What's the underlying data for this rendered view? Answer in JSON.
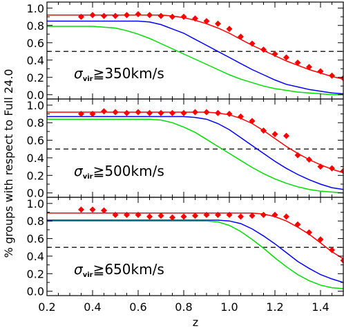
{
  "chart_data": {
    "type": "line",
    "ylabel": "% groups with respect to Full 24.0",
    "xlabel": "z",
    "xlim": [
      0.2,
      1.5
    ],
    "ylim": [
      -0.05,
      1.07
    ],
    "x_ticks": [
      "0.2",
      "0.4",
      "0.6",
      "0.8",
      "1.0",
      "1.2",
      "1.4"
    ],
    "y_ticks": [
      "0.0",
      "0.2",
      "0.4",
      "0.6",
      "0.8",
      "1.0"
    ],
    "reference_line": 0.5,
    "colors": {
      "red": "#ff0000",
      "blue": "#0000ff",
      "green": "#00dd00",
      "points": "#ff0000"
    },
    "panels": [
      {
        "annotation": {
          "symbol": "σ",
          "subscript": "vir",
          "text": "≧350km/s"
        },
        "series": [
          {
            "color": "red",
            "x": [
              0.2,
              0.3,
              0.4,
              0.5,
              0.6,
              0.7,
              0.75,
              0.8,
              0.85,
              0.9,
              0.95,
              1.0,
              1.05,
              1.1,
              1.15,
              1.2,
              1.25,
              1.3,
              1.35,
              1.4,
              1.45,
              1.5
            ],
            "y": [
              0.92,
              0.92,
              0.92,
              0.92,
              0.92,
              0.92,
              0.91,
              0.89,
              0.86,
              0.82,
              0.77,
              0.71,
              0.64,
              0.57,
              0.51,
              0.45,
              0.39,
              0.34,
              0.29,
              0.25,
              0.21,
              0.18
            ]
          },
          {
            "color": "blue",
            "x": [
              0.2,
              0.3,
              0.4,
              0.5,
              0.6,
              0.65,
              0.7,
              0.75,
              0.8,
              0.85,
              0.9,
              0.95,
              1.0,
              1.05,
              1.1,
              1.15,
              1.2,
              1.25,
              1.3,
              1.35,
              1.4,
              1.45,
              1.5
            ],
            "y": [
              0.85,
              0.85,
              0.85,
              0.85,
              0.85,
              0.84,
              0.81,
              0.76,
              0.71,
              0.64,
              0.57,
              0.5,
              0.43,
              0.36,
              0.29,
              0.23,
              0.17,
              0.12,
              0.09,
              0.06,
              0.04,
              0.02,
              0.01
            ]
          },
          {
            "color": "green",
            "x": [
              0.2,
              0.3,
              0.4,
              0.5,
              0.55,
              0.6,
              0.65,
              0.7,
              0.75,
              0.8,
              0.85,
              0.9,
              0.95,
              1.0,
              1.05,
              1.1,
              1.15,
              1.2,
              1.25,
              1.3,
              1.35,
              1.4,
              1.45,
              1.5
            ],
            "y": [
              0.79,
              0.79,
              0.79,
              0.77,
              0.74,
              0.7,
              0.65,
              0.59,
              0.53,
              0.47,
              0.41,
              0.35,
              0.29,
              0.23,
              0.18,
              0.14,
              0.1,
              0.07,
              0.05,
              0.03,
              0.02,
              0.01,
              0.0,
              0.0
            ]
          }
        ],
        "points": {
          "x": [
            0.35,
            0.4,
            0.45,
            0.5,
            0.55,
            0.6,
            0.65,
            0.7,
            0.75,
            0.8,
            0.85,
            0.9,
            0.95,
            1.0,
            1.05,
            1.1,
            1.15,
            1.2,
            1.25,
            1.3,
            1.35,
            1.4,
            1.45,
            1.5
          ],
          "y": [
            0.9,
            0.92,
            0.91,
            0.91,
            0.92,
            0.93,
            0.92,
            0.91,
            0.9,
            0.9,
            0.88,
            0.85,
            0.82,
            0.76,
            0.67,
            0.59,
            0.52,
            0.47,
            0.43,
            0.37,
            0.32,
            0.27,
            0.22,
            0.19
          ]
        }
      },
      {
        "annotation": {
          "symbol": "σ",
          "subscript": "vir",
          "text": "≧500km/s"
        },
        "series": [
          {
            "color": "red",
            "x": [
              0.2,
              0.3,
              0.4,
              0.5,
              0.6,
              0.7,
              0.8,
              0.9,
              0.95,
              1.0,
              1.05,
              1.1,
              1.15,
              1.2,
              1.25,
              1.3,
              1.35,
              1.4,
              1.45,
              1.5
            ],
            "y": [
              0.92,
              0.92,
              0.92,
              0.92,
              0.92,
              0.92,
              0.92,
              0.92,
              0.91,
              0.89,
              0.85,
              0.79,
              0.71,
              0.62,
              0.53,
              0.45,
              0.38,
              0.32,
              0.27,
              0.23
            ]
          },
          {
            "color": "blue",
            "x": [
              0.2,
              0.3,
              0.4,
              0.5,
              0.6,
              0.7,
              0.8,
              0.85,
              0.9,
              0.95,
              1.0,
              1.05,
              1.1,
              1.15,
              1.2,
              1.25,
              1.3,
              1.35,
              1.4,
              1.45,
              1.5
            ],
            "y": [
              0.87,
              0.87,
              0.87,
              0.87,
              0.87,
              0.87,
              0.87,
              0.86,
              0.84,
              0.79,
              0.72,
              0.63,
              0.54,
              0.45,
              0.36,
              0.28,
              0.21,
              0.15,
              0.1,
              0.06,
              0.04
            ]
          },
          {
            "color": "green",
            "x": [
              0.2,
              0.3,
              0.4,
              0.5,
              0.6,
              0.65,
              0.7,
              0.75,
              0.8,
              0.85,
              0.9,
              0.95,
              1.0,
              1.05,
              1.1,
              1.15,
              1.2,
              1.25,
              1.3,
              1.35,
              1.4,
              1.45,
              1.5
            ],
            "y": [
              0.84,
              0.84,
              0.84,
              0.84,
              0.84,
              0.84,
              0.83,
              0.8,
              0.75,
              0.69,
              0.61,
              0.53,
              0.45,
              0.37,
              0.29,
              0.22,
              0.16,
              0.11,
              0.07,
              0.04,
              0.02,
              0.01,
              0.0
            ]
          }
        ],
        "points": {
          "x": [
            0.35,
            0.4,
            0.45,
            0.5,
            0.55,
            0.6,
            0.65,
            0.7,
            0.75,
            0.8,
            0.85,
            0.9,
            0.95,
            1.0,
            1.05,
            1.1,
            1.15,
            1.2,
            1.25,
            1.3,
            1.35,
            1.4,
            1.45,
            1.5
          ],
          "y": [
            0.9,
            0.9,
            0.93,
            0.92,
            0.91,
            0.92,
            0.91,
            0.91,
            0.91,
            0.91,
            0.92,
            0.92,
            0.91,
            0.9,
            0.87,
            0.82,
            0.71,
            0.67,
            0.65,
            0.43,
            0.38,
            0.3,
            0.28,
            0.25
          ]
        }
      },
      {
        "annotation": {
          "symbol": "σ",
          "subscript": "vir",
          "text": "≧650km/s"
        },
        "series": [
          {
            "color": "red",
            "x": [
              0.2,
              0.3,
              0.4,
              0.5,
              0.6,
              0.7,
              0.8,
              0.9,
              1.0,
              1.1,
              1.15,
              1.2,
              1.25,
              1.3,
              1.35,
              1.4,
              1.45,
              1.5
            ],
            "y": [
              0.89,
              0.89,
              0.89,
              0.89,
              0.89,
              0.89,
              0.89,
              0.89,
              0.89,
              0.89,
              0.88,
              0.85,
              0.8,
              0.73,
              0.65,
              0.55,
              0.45,
              0.37
            ]
          },
          {
            "color": "blue",
            "x": [
              0.2,
              0.3,
              0.4,
              0.5,
              0.6,
              0.7,
              0.8,
              0.9,
              0.95,
              1.0,
              1.05,
              1.1,
              1.15,
              1.2,
              1.25,
              1.3,
              1.35,
              1.4,
              1.45,
              1.5
            ],
            "y": [
              0.81,
              0.81,
              0.81,
              0.81,
              0.81,
              0.81,
              0.81,
              0.81,
              0.81,
              0.8,
              0.77,
              0.71,
              0.63,
              0.54,
              0.44,
              0.34,
              0.26,
              0.19,
              0.14,
              0.1
            ]
          },
          {
            "color": "green",
            "x": [
              0.2,
              0.3,
              0.4,
              0.5,
              0.6,
              0.7,
              0.8,
              0.9,
              0.95,
              1.0,
              1.05,
              1.1,
              1.15,
              1.2,
              1.25,
              1.3,
              1.35,
              1.4,
              1.45,
              1.5
            ],
            "y": [
              0.8,
              0.8,
              0.8,
              0.8,
              0.8,
              0.8,
              0.8,
              0.8,
              0.79,
              0.75,
              0.68,
              0.59,
              0.49,
              0.38,
              0.28,
              0.19,
              0.12,
              0.07,
              0.04,
              0.03
            ]
          }
        ],
        "points": {
          "x": [
            0.35,
            0.4,
            0.45,
            0.5,
            0.55,
            0.6,
            0.65,
            0.7,
            0.75,
            0.8,
            0.85,
            0.9,
            0.95,
            1.0,
            1.05,
            1.1,
            1.15,
            1.2,
            1.25,
            1.3,
            1.35,
            1.4,
            1.45,
            1.5
          ],
          "y": [
            0.93,
            0.93,
            0.92,
            0.87,
            0.87,
            0.87,
            0.85,
            0.86,
            0.84,
            0.85,
            0.86,
            0.87,
            0.87,
            0.87,
            0.85,
            0.86,
            0.87,
            0.87,
            0.85,
            0.76,
            0.67,
            0.59,
            0.47,
            0.35
          ]
        }
      }
    ]
  }
}
